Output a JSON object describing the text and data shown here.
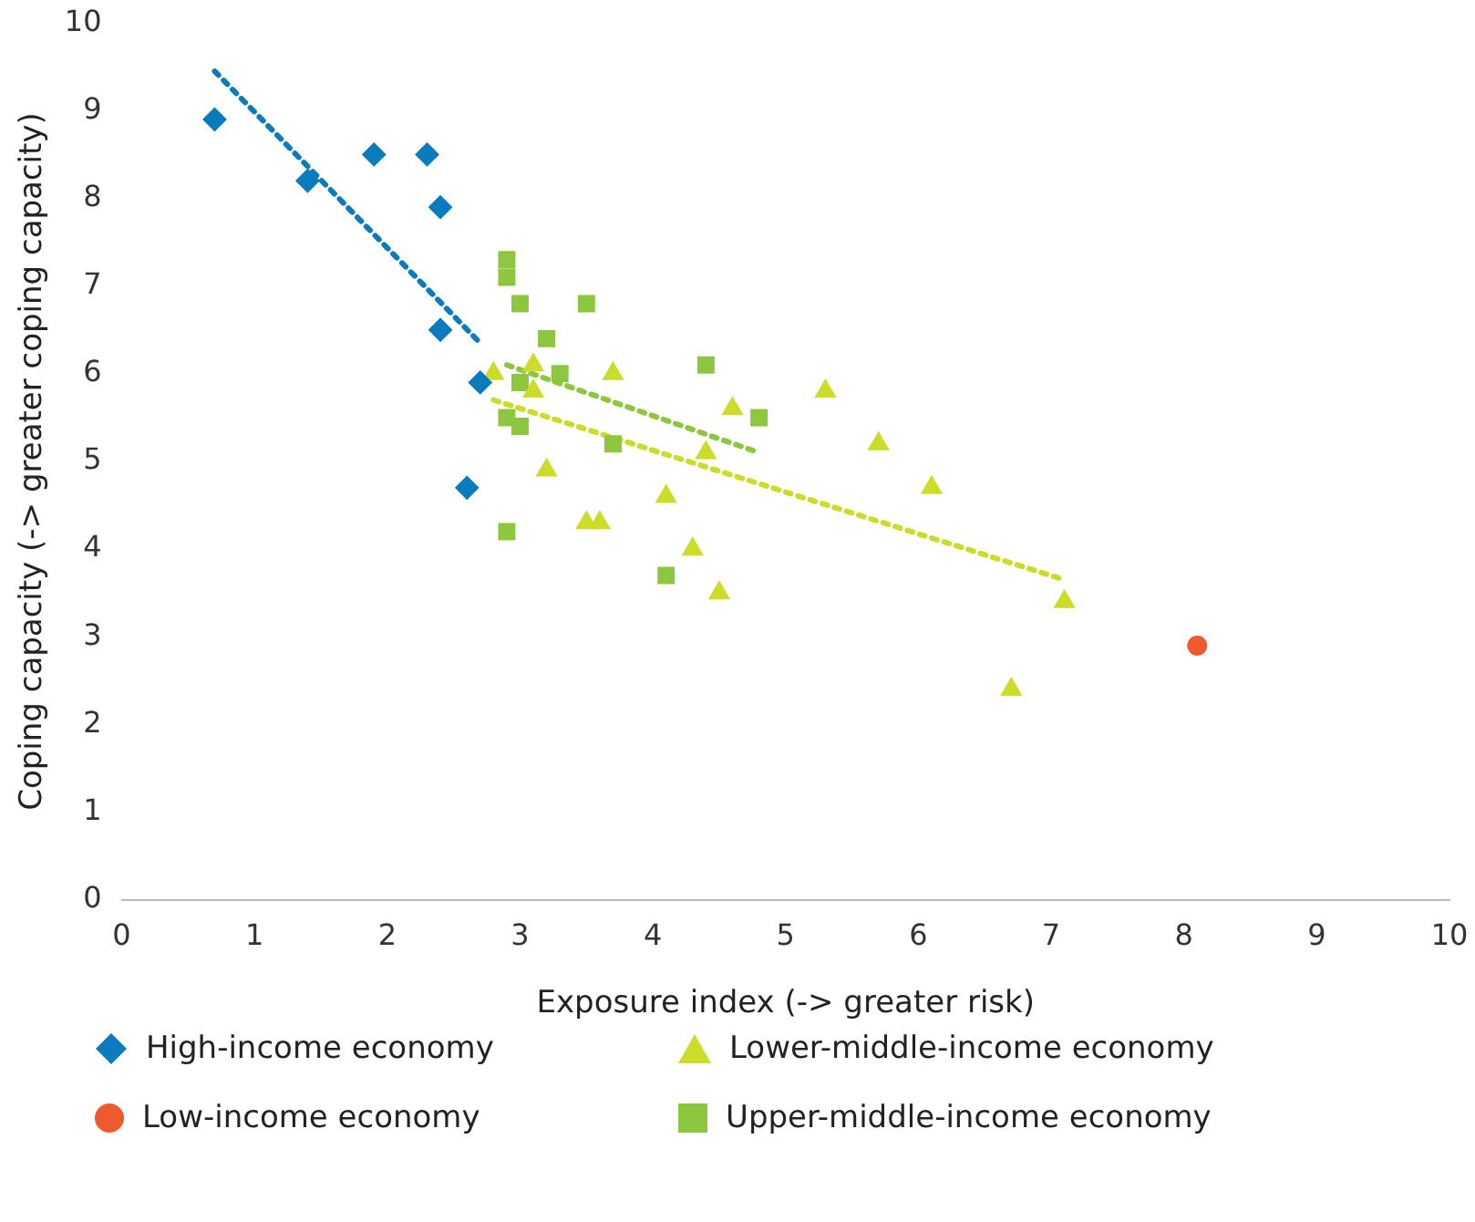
{
  "chart_data": {
    "type": "scatter",
    "xlabel": "Exposure index (-> greater risk)",
    "ylabel": "Coping capacity (-> greater coping capacity)",
    "xlim": [
      0,
      10
    ],
    "xticks": [
      0,
      1,
      2,
      3,
      4,
      5,
      6,
      7,
      8,
      9,
      10
    ],
    "ylim": [
      0,
      10
    ],
    "yticks": [
      0,
      1,
      2,
      3,
      4,
      5,
      6,
      7,
      8,
      9,
      10
    ],
    "grid": false,
    "legend": "bottom",
    "series": [
      {
        "name": "High-income economy",
        "color": "#0a7bbd",
        "marker": "diamond",
        "x": [
          0.7,
          1.4,
          1.9,
          2.3,
          2.4,
          2.4,
          2.7,
          2.6
        ],
        "values": [
          8.9,
          8.2,
          8.5,
          8.5,
          7.9,
          6.5,
          5.9,
          4.7
        ]
      },
      {
        "name": "Low-income economy",
        "color": "#ee5a2f",
        "marker": "circle",
        "x": [
          8.1
        ],
        "values": [
          2.9
        ]
      },
      {
        "name": "Lower-middle-income economy",
        "color": "#cddc29",
        "marker": "triangle",
        "x": [
          2.8,
          3.1,
          3.1,
          3.2,
          3.5,
          3.6,
          3.7,
          4.1,
          4.3,
          4.4,
          4.5,
          4.6,
          5.3,
          5.7,
          6.1,
          6.7,
          7.1
        ],
        "values": [
          6.0,
          6.1,
          5.8,
          4.9,
          4.3,
          4.3,
          6.0,
          4.6,
          4.0,
          5.1,
          3.5,
          5.6,
          5.8,
          5.2,
          4.7,
          2.4,
          3.4
        ]
      },
      {
        "name": "Upper-middle-income economy",
        "color": "#8dc63f",
        "marker": "square",
        "x": [
          2.9,
          2.9,
          3.0,
          3.5,
          3.2,
          3.3,
          3.0,
          2.9,
          3.0,
          3.7,
          4.4,
          4.8,
          4.1,
          2.9
        ],
        "values": [
          7.3,
          7.1,
          6.8,
          6.8,
          6.4,
          6.0,
          5.9,
          5.5,
          5.4,
          5.2,
          6.1,
          5.5,
          3.7,
          4.2
        ]
      },
      {
        "type": "line",
        "color": "#0a7bbd",
        "marker": "none",
        "line_style": "dotted",
        "x": [
          0.7,
          2.7
        ],
        "values": [
          9.45,
          6.35
        ]
      },
      {
        "type": "line",
        "color": "#cddc29",
        "marker": "none",
        "line_style": "dotted",
        "x": [
          2.8,
          7.1
        ],
        "values": [
          5.7,
          3.65
        ]
      },
      {
        "type": "line",
        "color": "#8dc63f",
        "marker": "none",
        "line_style": "dotted",
        "x": [
          2.9,
          4.8
        ],
        "values": [
          6.1,
          5.1
        ]
      }
    ]
  }
}
